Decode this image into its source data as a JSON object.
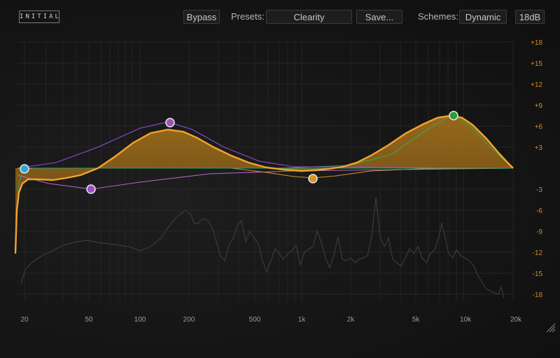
{
  "header": {
    "logo_text": "INITIAL",
    "bypass_label": "Bypass",
    "presets_label": "Presets:",
    "preset_value": "Clearity",
    "save_label": "Save...",
    "schemes_label": "Schemes:",
    "scheme_value": "Dynamic",
    "range_label": "18dB"
  },
  "axes": {
    "db_ticks": [
      "+18",
      "+15",
      "+12",
      "+9",
      "+6",
      "+3",
      "",
      "-3",
      "-6",
      "-9",
      "-12",
      "-15",
      "-18"
    ],
    "freq_ticks": [
      "20",
      "50",
      "100",
      "200",
      "500",
      "1k",
      "2k",
      "5k",
      "10k",
      "20k"
    ]
  },
  "bands": [
    {
      "name": "low-cut",
      "color": "#2aa9d8",
      "freq": "20",
      "gain_db": 0
    },
    {
      "name": "low-shelf",
      "color": "#a04fc0",
      "freq": "50",
      "gain_db": -3
    },
    {
      "name": "low-mid-bell",
      "color": "#a04fc0",
      "freq": "150",
      "gain_db": 6.5
    },
    {
      "name": "mid-bell",
      "color": "#d8932a",
      "freq": "1.2k",
      "gain_db": -1.5
    },
    {
      "name": "high-bell",
      "color": "#2f9a3a",
      "freq": "8.5k",
      "gain_db": 7.5
    }
  ],
  "colors": {
    "accent": "#f3a32b",
    "tick_text": "#d08a2a",
    "grid": "#2a2a2a"
  }
}
